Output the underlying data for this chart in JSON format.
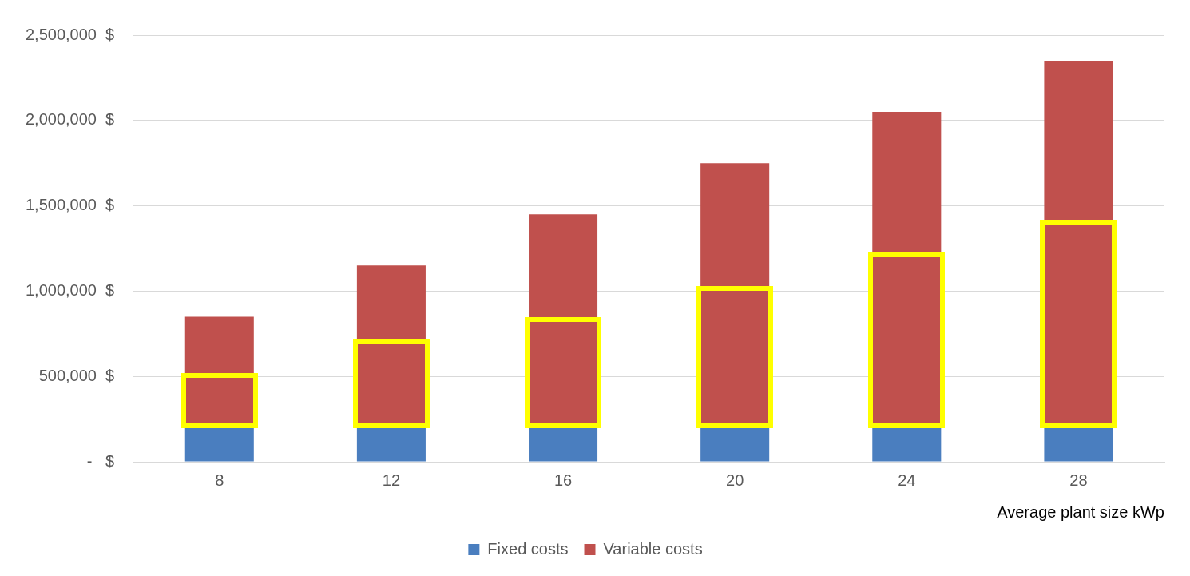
{
  "chart_data": {
    "type": "bar",
    "xlabel": "Average plant size kWp",
    "categories": [
      "8",
      "12",
      "16",
      "20",
      "24",
      "28"
    ],
    "stacked": true,
    "series": [
      {
        "name": "Fixed costs",
        "color": "#4a7ebf",
        "values": [
          210000,
          210000,
          210000,
          210000,
          210000,
          210000
        ]
      },
      {
        "name": "Variable costs",
        "color": "#c0504d",
        "values": [
          640000,
          940000,
          1240000,
          1540000,
          1840000,
          2140000
        ]
      }
    ],
    "ylim": [
      0,
      2500000
    ],
    "yticks": [
      {
        "value": 0,
        "label": "-   $"
      },
      {
        "value": 500000,
        "label": "500,000  $"
      },
      {
        "value": 1000000,
        "label": "1,000,000  $"
      },
      {
        "value": 1500000,
        "label": "1,500,000  $"
      },
      {
        "value": 2000000,
        "label": "2,000,000  $"
      },
      {
        "value": 2500000,
        "label": "2,500,000  $"
      }
    ],
    "grid": "y",
    "legend": "bottom"
  }
}
